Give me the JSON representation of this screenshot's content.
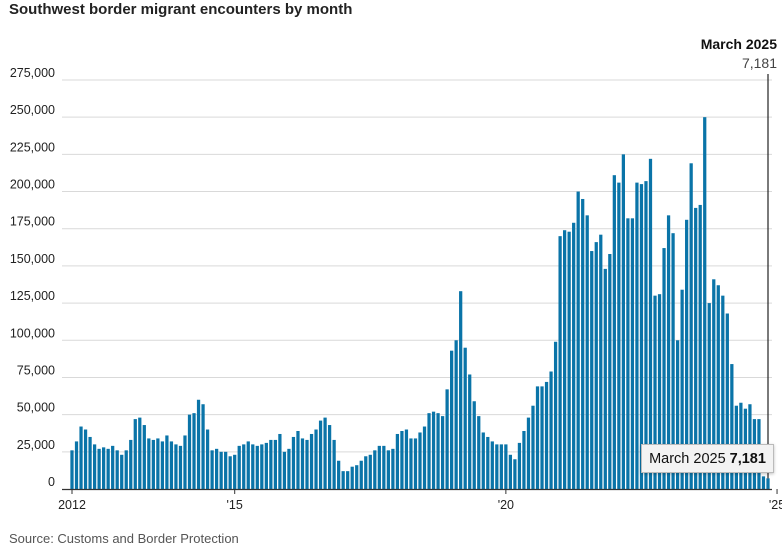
{
  "title": "Southwest border migrant encounters by month",
  "source": "Source: Customs and Border Protection",
  "callout": {
    "date": "March 2025",
    "value": "7,181"
  },
  "tooltip": {
    "date": "March 2025",
    "value": "7,181"
  },
  "colors": {
    "bar": "#0a74a8",
    "grid": "#d9d9d9",
    "axis": "#333333"
  },
  "chart_data": {
    "type": "bar",
    "title": "Southwest border migrant encounters by month",
    "xlabel": "",
    "ylabel": "",
    "ylim": [
      0,
      275000
    ],
    "yticks": [
      0,
      25000,
      50000,
      75000,
      100000,
      125000,
      150000,
      175000,
      200000,
      225000,
      250000,
      275000
    ],
    "ytick_labels": [
      "0",
      "25,000",
      "50,000",
      "75,000",
      "100,000",
      "125,000",
      "150,000",
      "175,000",
      "200,000",
      "225,000",
      "250,000",
      "275,000"
    ],
    "x_start": "2012-01",
    "x_end": "2025-03",
    "xtick_labels": [
      {
        "month": "2012-01",
        "label": "2012"
      },
      {
        "month": "2015-01",
        "label": "'15"
      },
      {
        "month": "2020-01",
        "label": "'20"
      },
      {
        "month": "2025-01",
        "label": "'25"
      }
    ],
    "grid": true,
    "values": [
      26000,
      32000,
      42000,
      40000,
      35000,
      30000,
      27000,
      28000,
      27000,
      29000,
      26000,
      23000,
      26000,
      33000,
      47000,
      48000,
      43000,
      34000,
      33000,
      34000,
      32000,
      36000,
      32000,
      30000,
      29000,
      36000,
      50000,
      51000,
      60000,
      57000,
      40000,
      26000,
      27000,
      25000,
      25000,
      22000,
      23000,
      29000,
      30000,
      32000,
      30000,
      29000,
      30000,
      31000,
      33000,
      33000,
      37000,
      25000,
      27000,
      35000,
      39000,
      34000,
      33000,
      37000,
      40000,
      46000,
      48000,
      43000,
      33000,
      19000,
      12000,
      12000,
      15000,
      16000,
      19000,
      22000,
      23000,
      26000,
      29000,
      29000,
      26000,
      27000,
      37000,
      39000,
      40000,
      34000,
      34000,
      38000,
      42000,
      51000,
      52000,
      51000,
      49000,
      67000,
      93000,
      100000,
      133000,
      95000,
      77000,
      59000,
      49000,
      38000,
      35000,
      32000,
      30000,
      30000,
      30000,
      23000,
      20000,
      31000,
      39000,
      48000,
      56000,
      69000,
      69000,
      72000,
      79000,
      99000,
      170000,
      174000,
      173000,
      179000,
      200000,
      195000,
      184000,
      160000,
      166000,
      171000,
      148000,
      158000,
      211000,
      206000,
      225000,
      182000,
      182000,
      206000,
      205000,
      207000,
      222000,
      130000,
      131000,
      162000,
      184000,
      172000,
      100000,
      134000,
      181000,
      219000,
      189000,
      191000,
      250000,
      125000,
      141000,
      137000,
      130000,
      118000,
      84000,
      56000,
      58000,
      54000,
      57000,
      47000,
      47000,
      8500,
      7181
    ]
  }
}
